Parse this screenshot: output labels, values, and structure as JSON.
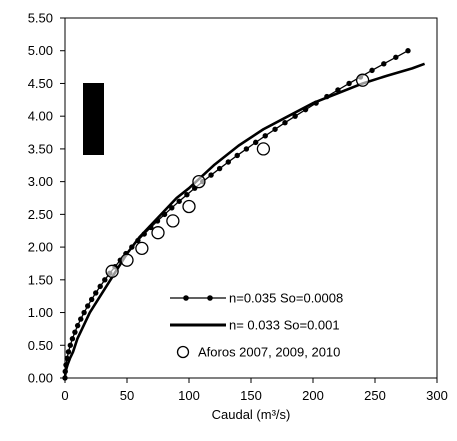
{
  "chart_data": {
    "type": "line",
    "title": "",
    "xlabel": "Caudal (m³/s)",
    "ylabel": "",
    "xlim": [
      0,
      300
    ],
    "ylim": [
      0,
      5.5
    ],
    "x_ticks": [
      "0",
      "50",
      "100",
      "150",
      "200",
      "250",
      "300"
    ],
    "y_ticks": [
      "0.00",
      "0.50",
      "1.00",
      "1.50",
      "2.00",
      "2.50",
      "3.00",
      "3.50",
      "4.00",
      "4.50",
      "5.00",
      "5.50"
    ],
    "grid": false,
    "legend_position": "bottom-right",
    "series": [
      {
        "name": "n=0.035 So=0.0008",
        "style": "line-markers",
        "color": "#000000",
        "points": [
          [
            0,
            0.0
          ],
          [
            0.2,
            0.1
          ],
          [
            0.8,
            0.2
          ],
          [
            1.7,
            0.3
          ],
          [
            2.8,
            0.4
          ],
          [
            4.3,
            0.5
          ],
          [
            6.0,
            0.6
          ],
          [
            8.0,
            0.7
          ],
          [
            10.2,
            0.8
          ],
          [
            12.7,
            0.9
          ],
          [
            15.4,
            1.0
          ],
          [
            18.3,
            1.1
          ],
          [
            21.5,
            1.2
          ],
          [
            24.8,
            1.3
          ],
          [
            28.4,
            1.4
          ],
          [
            32.1,
            1.5
          ],
          [
            36.1,
            1.6
          ],
          [
            40.3,
            1.7
          ],
          [
            44.6,
            1.8
          ],
          [
            49.1,
            1.9
          ],
          [
            53.9,
            2.0
          ],
          [
            58.8,
            2.1
          ],
          [
            63.9,
            2.2
          ],
          [
            69.2,
            2.3
          ],
          [
            74.6,
            2.4
          ],
          [
            80.3,
            2.5
          ],
          [
            86.1,
            2.6
          ],
          [
            92.1,
            2.7
          ],
          [
            98.3,
            2.8
          ],
          [
            104.6,
            2.9
          ],
          [
            111.1,
            3.0
          ],
          [
            117.8,
            3.1
          ],
          [
            124.7,
            3.2
          ],
          [
            131.7,
            3.3
          ],
          [
            138.9,
            3.4
          ],
          [
            146.3,
            3.5
          ],
          [
            153.8,
            3.6
          ],
          [
            161.5,
            3.7
          ],
          [
            169.4,
            3.8
          ],
          [
            177.4,
            3.9
          ],
          [
            185.6,
            4.0
          ],
          [
            194.0,
            4.1
          ],
          [
            202.5,
            4.2
          ],
          [
            211.2,
            4.3
          ],
          [
            220.1,
            4.4
          ],
          [
            229.1,
            4.5
          ],
          [
            238.3,
            4.6
          ],
          [
            247.6,
            4.7
          ],
          [
            257.1,
            4.8
          ],
          [
            266.8,
            4.9
          ],
          [
            276.6,
            5.0
          ]
        ]
      },
      {
        "name": "n= 0.033 So=0.001",
        "style": "line",
        "color": "#000000",
        "points": [
          [
            0,
            0.0
          ],
          [
            0.5,
            0.1
          ],
          [
            2,
            0.2
          ],
          [
            4,
            0.3
          ],
          [
            6.5,
            0.4
          ],
          [
            10,
            0.6
          ],
          [
            15,
            0.8
          ],
          [
            20,
            1.0
          ],
          [
            30,
            1.3
          ],
          [
            40,
            1.6
          ],
          [
            50,
            1.9
          ],
          [
            60,
            2.15
          ],
          [
            75,
            2.45
          ],
          [
            90,
            2.75
          ],
          [
            100,
            2.9
          ],
          [
            120,
            3.25
          ],
          [
            140,
            3.55
          ],
          [
            160,
            3.8
          ],
          [
            180,
            4.0
          ],
          [
            200,
            4.2
          ],
          [
            220,
            4.35
          ],
          [
            240,
            4.5
          ],
          [
            260,
            4.62
          ],
          [
            280,
            4.73
          ],
          [
            290,
            4.8
          ]
        ]
      },
      {
        "name": "Aforos 2007, 2009, 2010",
        "style": "markers-hollow",
        "color": "#000000",
        "points": [
          [
            38,
            1.63
          ],
          [
            50,
            1.8
          ],
          [
            62,
            1.98
          ],
          [
            75,
            2.22
          ],
          [
            87,
            2.4
          ],
          [
            100,
            2.62
          ],
          [
            108,
            3.0
          ],
          [
            160,
            3.5
          ],
          [
            240,
            4.55
          ]
        ]
      }
    ]
  }
}
